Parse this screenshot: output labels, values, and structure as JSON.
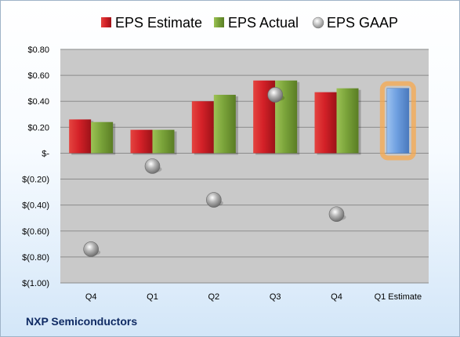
{
  "chart_data": {
    "type": "bar",
    "categories": [
      "Q4",
      "Q1",
      "Q2",
      "Q3",
      "Q4",
      "Q1 Estimate"
    ],
    "series": [
      {
        "name": "EPS Estimate",
        "type": "bar",
        "color": "#d42128",
        "values": [
          0.26,
          0.18,
          0.4,
          0.56,
          0.47,
          null
        ]
      },
      {
        "name": "EPS Actual",
        "type": "bar",
        "color": "#7aa33a",
        "values": [
          0.24,
          0.18,
          0.45,
          0.56,
          0.5,
          null
        ]
      },
      {
        "name": "EPS GAAP",
        "type": "scatter",
        "color": "#9a9a9a",
        "values": [
          -0.74,
          -0.1,
          -0.36,
          0.45,
          -0.47,
          null
        ]
      }
    ],
    "estimate_bar": {
      "category": "Q1 Estimate",
      "value": 0.5,
      "color": "#6e9fe0",
      "glow": "#f7a84e"
    },
    "y_ticks": [
      {
        "value": 0.8,
        "label": "$0.80"
      },
      {
        "value": 0.6,
        "label": "$0.60"
      },
      {
        "value": 0.4,
        "label": "$0.40"
      },
      {
        "value": 0.2,
        "label": "$0.20"
      },
      {
        "value": 0.0,
        "label": "$-"
      },
      {
        "value": -0.2,
        "label": "$(0.20)"
      },
      {
        "value": -0.4,
        "label": "$(0.40)"
      },
      {
        "value": -0.6,
        "label": "$(0.60)"
      },
      {
        "value": -0.8,
        "label": "$(0.80)"
      },
      {
        "value": -1.0,
        "label": "$(1.00)"
      }
    ],
    "ylim": [
      -1.0,
      0.8
    ],
    "grid": true,
    "legend_position": "top"
  },
  "footer": {
    "company": "NXP Semiconductors"
  }
}
